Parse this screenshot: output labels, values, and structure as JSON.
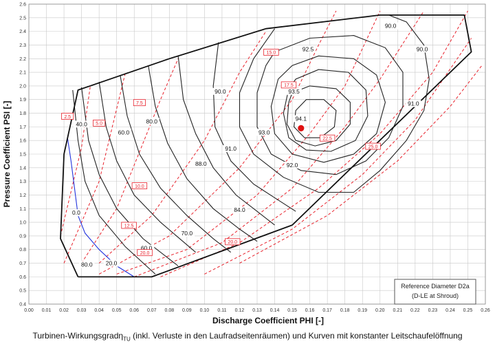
{
  "chart_data": {
    "type": "line",
    "xlabel": "Discharge Coefficient PHI [-]",
    "ylabel": "Pressure Coefficient PSI [-]",
    "xlim": [
      0.0,
      0.26
    ],
    "ylim": [
      0.4,
      2.6
    ],
    "x_ticks": [
      "0.00",
      "0.01",
      "0.02",
      "0.03",
      "0.04",
      "0.05",
      "0.06",
      "0.07",
      "0.08",
      "0.09",
      "0.10",
      "0.11",
      "0.12",
      "0.13",
      "0.14",
      "0.15",
      "0.16",
      "0.17",
      "0.18",
      "0.19",
      "0.20",
      "0.21",
      "0.22",
      "0.23",
      "0.24",
      "0.25",
      "0.26"
    ],
    "y_ticks": [
      "0.4",
      "0.5",
      "0.6",
      "0.7",
      "0.8",
      "0.9",
      "1.0",
      "1.1",
      "1.2",
      "1.3",
      "1.4",
      "1.5",
      "1.6",
      "1.7",
      "1.8",
      "1.9",
      "2.0",
      "2.1",
      "2.2",
      "2.3",
      "2.4",
      "2.5",
      "2.6"
    ],
    "grid": true,
    "colors": {
      "efficiency": "#222222",
      "guide_vane": "#e8202a",
      "zero_line": "#2233dd",
      "boundary": "#111111",
      "optimum": "#e01010"
    },
    "operating_boundary": [
      [
        0.028,
        0.6
      ],
      [
        0.07,
        0.6
      ],
      [
        0.15,
        0.98
      ],
      [
        0.252,
        2.25
      ],
      [
        0.248,
        2.52
      ],
      [
        0.2,
        2.52
      ],
      [
        0.135,
        2.42
      ],
      [
        0.08,
        2.2
      ],
      [
        0.028,
        1.97
      ],
      [
        0.02,
        1.5
      ],
      [
        0.018,
        0.88
      ],
      [
        0.028,
        0.6
      ]
    ],
    "efficiency_labels": [
      "0.0",
      "20.0",
      "40.0",
      "60.0",
      "70.0",
      "80.0",
      "84.0",
      "88.0",
      "90.0",
      "90.0",
      "91.0",
      "91.0",
      "92.0",
      "92.5",
      "93.0",
      "93.5",
      "94.1",
      "60.0",
      "80.0",
      "90.0"
    ],
    "efficiency_curves": [
      {
        "level": "0.0",
        "color": "blue",
        "points": [
          [
            0.022,
            1.62
          ],
          [
            0.024,
            1.45
          ],
          [
            0.026,
            1.25
          ],
          [
            0.028,
            1.05
          ],
          [
            0.032,
            0.92
          ],
          [
            0.04,
            0.8
          ],
          [
            0.05,
            0.68
          ],
          [
            0.06,
            0.6
          ]
        ]
      },
      {
        "level": "20.0",
        "points": [
          [
            0.025,
            1.97
          ],
          [
            0.028,
            1.6
          ],
          [
            0.032,
            1.3
          ],
          [
            0.04,
            1.05
          ],
          [
            0.055,
            0.82
          ],
          [
            0.072,
            0.62
          ]
        ]
      },
      {
        "level": "40.0",
        "points": [
          [
            0.03,
            1.99
          ],
          [
            0.034,
            1.6
          ],
          [
            0.04,
            1.35
          ],
          [
            0.05,
            1.1
          ],
          [
            0.065,
            0.88
          ],
          [
            0.085,
            0.68
          ]
        ]
      },
      {
        "level": "60.0",
        "points": [
          [
            0.04,
            2.03
          ],
          [
            0.044,
            1.7
          ],
          [
            0.05,
            1.45
          ],
          [
            0.06,
            1.2
          ],
          [
            0.075,
            1.0
          ],
          [
            0.095,
            0.78
          ]
        ]
      },
      {
        "level": "70.0",
        "points": [
          [
            0.052,
            2.08
          ],
          [
            0.056,
            1.78
          ],
          [
            0.063,
            1.5
          ],
          [
            0.075,
            1.25
          ],
          [
            0.09,
            1.05
          ],
          [
            0.105,
            0.88
          ],
          [
            0.115,
            0.78
          ]
        ]
      },
      {
        "level": "80.0",
        "points": [
          [
            0.068,
            2.15
          ],
          [
            0.072,
            1.85
          ],
          [
            0.079,
            1.58
          ],
          [
            0.09,
            1.32
          ],
          [
            0.105,
            1.1
          ],
          [
            0.12,
            0.95
          ],
          [
            0.13,
            0.86
          ]
        ]
      },
      {
        "level": "84.0",
        "points": [
          [
            0.085,
            2.22
          ],
          [
            0.088,
            1.9
          ],
          [
            0.095,
            1.65
          ],
          [
            0.105,
            1.4
          ],
          [
            0.118,
            1.2
          ],
          [
            0.13,
            1.08
          ],
          [
            0.14,
            0.98
          ]
        ]
      },
      {
        "level": "88.0",
        "points": [
          [
            0.108,
            2.32
          ],
          [
            0.105,
            2.0
          ],
          [
            0.106,
            1.7
          ],
          [
            0.115,
            1.45
          ],
          [
            0.128,
            1.28
          ],
          [
            0.14,
            1.18
          ],
          [
            0.152,
            1.08
          ]
        ]
      },
      {
        "level": "90.0",
        "points": [
          [
            0.14,
            2.42
          ],
          [
            0.128,
            2.2
          ],
          [
            0.12,
            1.95
          ],
          [
            0.12,
            1.7
          ],
          [
            0.128,
            1.5
          ],
          [
            0.145,
            1.33
          ],
          [
            0.165,
            1.22
          ],
          [
            0.185,
            1.22
          ],
          [
            0.2,
            1.38
          ],
          [
            0.215,
            1.6
          ],
          [
            0.225,
            1.82
          ],
          [
            0.228,
            2.05
          ],
          [
            0.225,
            2.3
          ],
          [
            0.215,
            2.47
          ],
          [
            0.205,
            2.52
          ]
        ]
      },
      {
        "level": "91.0",
        "points": [
          [
            0.135,
            2.15
          ],
          [
            0.13,
            1.95
          ],
          [
            0.13,
            1.7
          ],
          [
            0.138,
            1.5
          ],
          [
            0.155,
            1.38
          ],
          [
            0.175,
            1.35
          ],
          [
            0.192,
            1.45
          ],
          [
            0.205,
            1.62
          ],
          [
            0.213,
            1.85
          ],
          [
            0.213,
            2.1
          ],
          [
            0.203,
            2.28
          ],
          [
            0.185,
            2.37
          ],
          [
            0.16,
            2.35
          ],
          [
            0.14,
            2.25
          ],
          [
            0.135,
            2.15
          ]
        ]
      },
      {
        "level": "92.0",
        "points": [
          [
            0.142,
            2.05
          ],
          [
            0.138,
            1.85
          ],
          [
            0.14,
            1.65
          ],
          [
            0.15,
            1.5
          ],
          [
            0.168,
            1.44
          ],
          [
            0.185,
            1.5
          ],
          [
            0.198,
            1.65
          ],
          [
            0.203,
            1.88
          ],
          [
            0.198,
            2.08
          ],
          [
            0.185,
            2.2
          ],
          [
            0.165,
            2.22
          ],
          [
            0.15,
            2.15
          ],
          [
            0.142,
            2.05
          ]
        ]
      },
      {
        "level": "92.5",
        "points": [
          [
            0.148,
            1.98
          ],
          [
            0.145,
            1.8
          ],
          [
            0.148,
            1.62
          ],
          [
            0.158,
            1.53
          ],
          [
            0.172,
            1.52
          ],
          [
            0.186,
            1.6
          ],
          [
            0.193,
            1.78
          ],
          [
            0.192,
            1.97
          ],
          [
            0.182,
            2.1
          ],
          [
            0.165,
            2.12
          ],
          [
            0.152,
            2.05
          ],
          [
            0.148,
            1.98
          ]
        ]
      },
      {
        "level": "93.0",
        "points": [
          [
            0.148,
            1.88
          ],
          [
            0.147,
            1.72
          ],
          [
            0.152,
            1.6
          ],
          [
            0.163,
            1.56
          ],
          [
            0.175,
            1.6
          ],
          [
            0.183,
            1.72
          ],
          [
            0.183,
            1.88
          ],
          [
            0.175,
            1.98
          ],
          [
            0.16,
            2.0
          ],
          [
            0.15,
            1.95
          ],
          [
            0.148,
            1.88
          ]
        ]
      },
      {
        "level": "93.5",
        "points": [
          [
            0.152,
            1.82
          ],
          [
            0.151,
            1.7
          ],
          [
            0.157,
            1.62
          ],
          [
            0.166,
            1.62
          ],
          [
            0.174,
            1.7
          ],
          [
            0.175,
            1.82
          ],
          [
            0.168,
            1.9
          ],
          [
            0.158,
            1.9
          ],
          [
            0.152,
            1.82
          ]
        ]
      }
    ],
    "guide_vane_labels": [
      "2.5",
      "5.0",
      "7.5",
      "10.0",
      "12.5",
      "15.0",
      "17.5",
      "20.0",
      "20.0",
      "22.5",
      "25.0"
    ],
    "guide_vane_lines": [
      {
        "label": "2.5",
        "points": [
          [
            0.018,
            0.9
          ],
          [
            0.03,
            1.55
          ],
          [
            0.035,
            2.0
          ]
        ]
      },
      {
        "label": "5.0",
        "points": [
          [
            0.02,
            0.7
          ],
          [
            0.04,
            1.3
          ],
          [
            0.055,
            2.1
          ]
        ]
      },
      {
        "label": "7.5",
        "points": [
          [
            0.03,
            0.7
          ],
          [
            0.05,
            1.1
          ],
          [
            0.075,
            1.9
          ],
          [
            0.085,
            2.2
          ]
        ]
      },
      {
        "label": "10.0",
        "points": [
          [
            0.04,
            0.7
          ],
          [
            0.07,
            1.05
          ],
          [
            0.1,
            1.6
          ],
          [
            0.12,
            2.1
          ],
          [
            0.135,
            2.4
          ]
        ]
      },
      {
        "label": "12.5",
        "points": [
          [
            0.04,
            0.62
          ],
          [
            0.08,
            0.9
          ],
          [
            0.12,
            1.4
          ],
          [
            0.15,
            1.9
          ],
          [
            0.165,
            2.3
          ],
          [
            0.175,
            2.55
          ]
        ]
      },
      {
        "label": "15.0",
        "points": [
          [
            0.05,
            0.62
          ],
          [
            0.09,
            0.8
          ],
          [
            0.13,
            1.2
          ],
          [
            0.16,
            1.65
          ],
          [
            0.18,
            2.0
          ],
          [
            0.2,
            2.55
          ]
        ]
      },
      {
        "label": "17.5",
        "points": [
          [
            0.06,
            0.6
          ],
          [
            0.11,
            0.85
          ],
          [
            0.15,
            1.25
          ],
          [
            0.18,
            1.7
          ],
          [
            0.2,
            2.05
          ],
          [
            0.225,
            2.55
          ]
        ]
      },
      {
        "label": "20.0",
        "points": [
          [
            0.075,
            0.6
          ],
          [
            0.12,
            0.85
          ],
          [
            0.165,
            1.25
          ],
          [
            0.2,
            1.65
          ],
          [
            0.23,
            2.1
          ],
          [
            0.25,
            2.55
          ]
        ]
      },
      {
        "label": "22.5",
        "points": [
          [
            0.1,
            0.62
          ],
          [
            0.15,
            0.95
          ],
          [
            0.19,
            1.35
          ],
          [
            0.22,
            1.75
          ],
          [
            0.252,
            2.35
          ]
        ]
      },
      {
        "label": "25.0",
        "points": [
          [
            0.12,
            0.7
          ],
          [
            0.17,
            1.05
          ],
          [
            0.21,
            1.45
          ],
          [
            0.24,
            1.85
          ],
          [
            0.258,
            2.15
          ]
        ]
      }
    ],
    "optimum_point": {
      "x": 0.155,
      "y": 1.69,
      "label": "94.1"
    },
    "annotation_box": [
      "Reference Diameter D2a",
      "(D-LE at Shroud)"
    ]
  },
  "caption": {
    "prefix": "Turbinen-Wirkungsgrad",
    "symbol": "η",
    "subscript": "TU",
    "suffix": " (inkl. Verluste in den Laufradseitenräumen) und Kurven mit konstanter Leitschaufelöffnung"
  }
}
